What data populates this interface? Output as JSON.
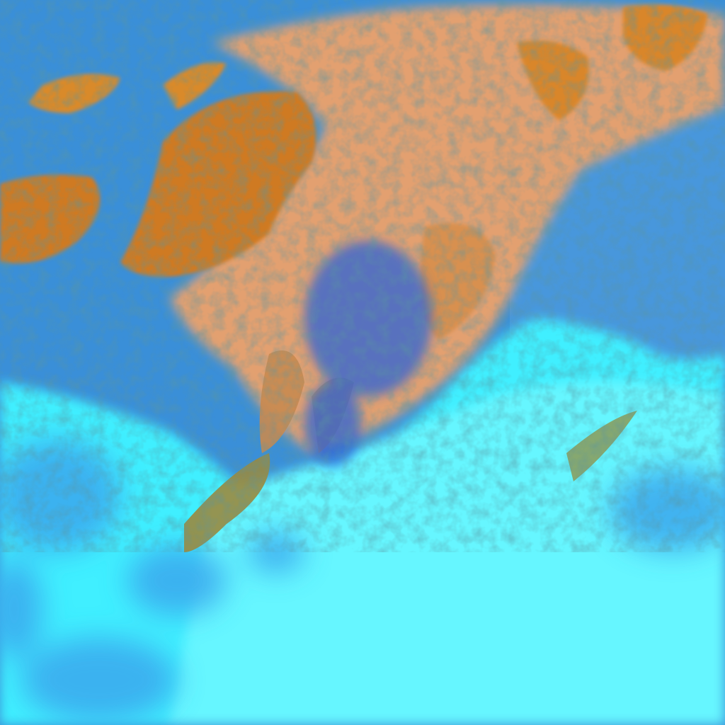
{
  "image": {
    "kind": "false-color satellite imagery",
    "colors": {
      "open_water": "#3a8fd8",
      "ocean_blue": "#4a9ee0",
      "snow_ice_cyan": "#3ff0ff",
      "low_cloud_cyan": "#60f4ff",
      "high_cloud_orange": "#d88a3a",
      "thick_cloud_orange": "#c9731f",
      "cloud_peach": "#e8a878",
      "cloud_edge_teal": "#2a6a6a",
      "deep_blue_shadow": "#1f55c8"
    }
  }
}
